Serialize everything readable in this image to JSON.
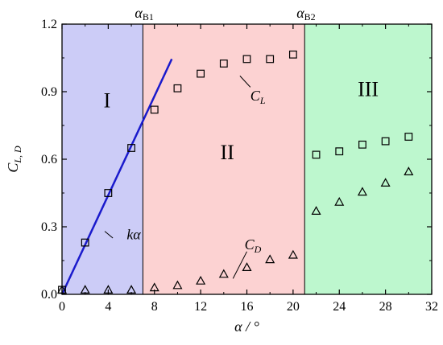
{
  "chart_data": {
    "type": "scatter",
    "title": "",
    "xlabel": "α / °",
    "ylabel": "C",
    "ylabel_sub": "L, D",
    "xlim": [
      0,
      32
    ],
    "ylim": [
      0,
      1.2
    ],
    "x_ticks": [
      "0",
      "4",
      "8",
      "12",
      "16",
      "20",
      "24",
      "28",
      "32"
    ],
    "x_tick_values": [
      0,
      4,
      8,
      12,
      16,
      20,
      24,
      28,
      32
    ],
    "y_ticks": [
      "0.0",
      "0.3",
      "0.6",
      "0.9",
      "1.2"
    ],
    "y_tick_values": [
      0,
      0.3,
      0.6,
      0.9,
      1.2
    ],
    "grid": false,
    "regions": [
      {
        "label": "I",
        "x_start": 0,
        "x_end": 7,
        "color": "#ccccf7"
      },
      {
        "label": "II",
        "x_start": 7,
        "x_end": 21,
        "color": "#fcd2d2"
      },
      {
        "label": "III",
        "x_start": 21,
        "x_end": 32,
        "color": "#bdf7ce"
      }
    ],
    "boundaries": [
      {
        "label_main": "α",
        "label_sub": "B1",
        "x": 7
      },
      {
        "label_main": "α",
        "label_sub": "B2",
        "x": 21
      }
    ],
    "series": [
      {
        "name": "C",
        "name_sub": "L",
        "marker": "square",
        "x": [
          0,
          2,
          4,
          6,
          8,
          10,
          12,
          14,
          16,
          18,
          20,
          22,
          24,
          26,
          28,
          30
        ],
        "values": [
          0.02,
          0.23,
          0.45,
          0.65,
          0.82,
          0.915,
          0.98,
          1.025,
          1.045,
          1.045,
          1.065,
          0.62,
          0.635,
          0.665,
          0.68,
          0.7
        ]
      },
      {
        "name": "C",
        "name_sub": "D",
        "marker": "triangle",
        "x": [
          0,
          2,
          4,
          6,
          8,
          10,
          12,
          14,
          16,
          18,
          20,
          22,
          24,
          26,
          28,
          30
        ],
        "values": [
          0.02,
          0.02,
          0.02,
          0.02,
          0.03,
          0.04,
          0.06,
          0.09,
          0.12,
          0.155,
          0.175,
          0.37,
          0.41,
          0.455,
          0.495,
          0.545
        ]
      }
    ],
    "fit_line": {
      "label": "kα",
      "x": [
        0,
        9.5
      ],
      "values": [
        0,
        1.045
      ],
      "color": "#1a1acc"
    }
  }
}
